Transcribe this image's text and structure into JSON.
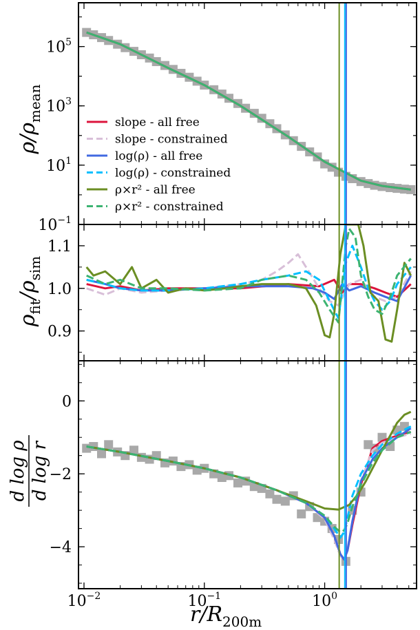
{
  "figure": {
    "xlabel_main": "r/R",
    "xlabel_sub": "200m",
    "x_ticks": [
      {
        "base": "10",
        "exp": "−2",
        "value": 0.01
      },
      {
        "base": "10",
        "exp": "−1",
        "value": 0.1
      },
      {
        "base": "10",
        "exp": "0",
        "value": 1
      }
    ]
  },
  "chart_data": [
    {
      "type": "line",
      "panel": "density",
      "ylabel_main": "ρ/ρ",
      "ylabel_sub": "mean",
      "xscale": "log",
      "yscale": "log",
      "xlim": [
        0.009,
        5.8
      ],
      "ylim": [
        0.1,
        3000000
      ],
      "y_ticks": [
        {
          "base": "10",
          "exp": "5",
          "value": 100000
        },
        {
          "base": "10",
          "exp": "3",
          "value": 1000
        },
        {
          "base": "10",
          "exp": "1",
          "value": 10
        },
        {
          "base": "10",
          "exp": "−1",
          "value": 0.1
        }
      ],
      "vlines": [
        {
          "x": 1.32,
          "color": "#6b8e23"
        },
        {
          "x": 1.47,
          "color": "#00bfff"
        },
        {
          "x": 1.51,
          "color": "#4169e1"
        }
      ],
      "legend": {
        "placement": "lower-left",
        "entries": [
          {
            "label": "slope - all free",
            "color": "#dc143c",
            "dash": "solid"
          },
          {
            "label": "slope - constrained",
            "color": "#d8bfd8",
            "dash": "dashed"
          },
          {
            "label": "log(ρ) - all free",
            "color": "#4169e1",
            "dash": "solid"
          },
          {
            "label": "log(ρ) - constrained",
            "color": "#00bfff",
            "dash": "dashed"
          },
          {
            "label": "ρ×r² - all free",
            "color": "#6b8e23",
            "dash": "solid"
          },
          {
            "label": "ρ×r² - constrained",
            "color": "#3cb371",
            "dash": "dashed"
          }
        ]
      },
      "sim_points": {
        "x": [
          0.0105,
          0.012,
          0.014,
          0.016,
          0.019,
          0.022,
          0.026,
          0.03,
          0.035,
          0.04,
          0.047,
          0.055,
          0.064,
          0.075,
          0.087,
          0.1,
          0.12,
          0.14,
          0.16,
          0.19,
          0.22,
          0.26,
          0.3,
          0.35,
          0.4,
          0.47,
          0.55,
          0.64,
          0.75,
          0.87,
          1.0,
          1.15,
          1.3,
          1.5,
          1.7,
          2.0,
          2.3,
          2.6,
          3.0,
          3.5,
          4.0,
          4.6,
          5.2
        ],
        "y": [
          300000,
          250000,
          200000,
          160000,
          120000,
          92000,
          69000,
          53000,
          41000,
          31000,
          23000,
          17000,
          12500,
          9200,
          6800,
          5000,
          3500,
          2500,
          1800,
          1200,
          830,
          560,
          380,
          250,
          170,
          105,
          67,
          43,
          28,
          19,
          11,
          8.5,
          5.8,
          4.2,
          3.5,
          2.8,
          2.4,
          2.1,
          1.9,
          1.75,
          1.65,
          1.55,
          1.5
        ]
      },
      "series": [
        {
          "name": "slope - all free",
          "color": "#dc143c",
          "x": [
            0.0105,
            0.02,
            0.05,
            0.1,
            0.2,
            0.5,
            1.0,
            1.5,
            2.0,
            3.0,
            5.2
          ],
          "y": [
            300000,
            120000,
            19000,
            5000,
            1000,
            90,
            13,
            5.5,
            3.0,
            2.0,
            1.5
          ]
        },
        {
          "name": "ρ×r² - constrained",
          "color": "#3cb371",
          "x": [
            0.0105,
            0.02,
            0.05,
            0.1,
            0.2,
            0.5,
            1.0,
            1.5,
            2.0,
            3.0,
            5.2
          ],
          "y": [
            300000,
            120000,
            19000,
            5000,
            1000,
            90,
            13,
            5.5,
            3.0,
            2.0,
            1.5
          ]
        }
      ]
    },
    {
      "type": "line",
      "panel": "ratio",
      "ylabel_main": "ρ",
      "ylabel_sub1": "fit",
      "ylabel_mid": "/ρ",
      "ylabel_sub2": "sim",
      "xscale": "log",
      "xlim": [
        0.009,
        5.8
      ],
      "ylim": [
        0.83,
        1.15
      ],
      "y_ticks": [
        {
          "label": "1.1",
          "value": 1.1
        },
        {
          "label": "1.0",
          "value": 1.0
        },
        {
          "label": "0.9",
          "value": 0.9
        }
      ],
      "series": [
        {
          "name": "slope - all free",
          "color": "#dc143c",
          "dash": "solid",
          "x": [
            0.0105,
            0.015,
            0.02,
            0.03,
            0.05,
            0.1,
            0.2,
            0.5,
            0.9,
            1.2,
            1.4,
            1.6,
            2.0,
            2.6,
            3.2,
            4.0,
            5.2
          ],
          "y": [
            1.01,
            1.0,
            1.005,
            0.995,
            1.0,
            1.0,
            1.0,
            1.01,
            1.005,
            1.02,
            0.99,
            1.01,
            1.01,
            1.0,
            0.99,
            0.98,
            1.01
          ]
        },
        {
          "name": "slope - constrained",
          "color": "#d8bfd8",
          "dash": "dashed",
          "x": [
            0.0105,
            0.015,
            0.02,
            0.03,
            0.05,
            0.1,
            0.2,
            0.3,
            0.4,
            0.5,
            0.6,
            0.7,
            0.9,
            1.1,
            1.3,
            1.6,
            2.0,
            2.6,
            3.2,
            4.0,
            5.2
          ],
          "y": [
            1.0,
            0.985,
            1.0,
            0.99,
            0.995,
            1.0,
            1.01,
            1.02,
            1.04,
            1.06,
            1.08,
            1.05,
            1.0,
            0.97,
            0.96,
            1.01,
            1.02,
            0.98,
            0.97,
            0.98,
            1.04
          ]
        },
        {
          "name": "log(ρ) - all free",
          "color": "#4169e1",
          "dash": "solid",
          "x": [
            0.0105,
            0.015,
            0.02,
            0.03,
            0.05,
            0.1,
            0.2,
            0.5,
            0.8,
            1.0,
            1.2,
            1.4,
            1.6,
            2.0,
            2.6,
            3.2,
            4.0,
            5.2
          ],
          "y": [
            1.02,
            1.01,
            1.0,
            0.995,
            0.995,
            1.0,
            1.005,
            1.005,
            1.0,
            0.99,
            0.975,
            1.01,
            0.995,
            1.005,
            0.99,
            0.98,
            0.97,
            1.03
          ]
        },
        {
          "name": "log(ρ) - constrained",
          "color": "#00bfff",
          "dash": "dashed",
          "x": [
            0.0105,
            0.015,
            0.02,
            0.03,
            0.05,
            0.1,
            0.2,
            0.3,
            0.5,
            0.7,
            0.9,
            1.1,
            1.3,
            1.5,
            1.7,
            2.0,
            2.3,
            2.6,
            3.0,
            3.5,
            4.0,
            5.2
          ],
          "y": [
            1.02,
            1.01,
            1.0,
            0.995,
            0.995,
            1.0,
            1.01,
            1.02,
            1.03,
            1.04,
            1.02,
            0.97,
            0.93,
            1.06,
            1.1,
            1.05,
            1.0,
            0.97,
            0.95,
            0.97,
            1.01,
            1.05
          ]
        },
        {
          "name": "ρ×r² - all free",
          "color": "#6b8e23",
          "dash": "solid",
          "x": [
            0.0105,
            0.012,
            0.015,
            0.02,
            0.025,
            0.03,
            0.04,
            0.05,
            0.07,
            0.1,
            0.15,
            0.2,
            0.3,
            0.5,
            0.7,
            0.85,
            1.0,
            1.1,
            1.2,
            1.35,
            1.5,
            1.7,
            1.9,
            2.1,
            2.4,
            2.8,
            3.2,
            3.6,
            4.0,
            4.6,
            5.2
          ],
          "y": [
            1.05,
            1.03,
            1.04,
            1.01,
            1.05,
            1.0,
            1.02,
            0.99,
            1.0,
            0.995,
            1.0,
            1.005,
            1.01,
            1.01,
            1.0,
            0.96,
            0.89,
            0.885,
            0.94,
            1.08,
            1.15,
            1.15,
            1.15,
            1.1,
            0.99,
            0.97,
            0.88,
            0.875,
            0.95,
            1.06,
            1.03
          ]
        },
        {
          "name": "ρ×r² - constrained",
          "color": "#3cb371",
          "dash": "dashed",
          "x": [
            0.0105,
            0.015,
            0.02,
            0.03,
            0.05,
            0.1,
            0.2,
            0.3,
            0.5,
            0.7,
            0.9,
            1.1,
            1.3,
            1.5,
            1.6,
            1.8,
            2.0,
            2.3,
            2.6,
            3.0,
            3.5,
            4.0,
            5.2
          ],
          "y": [
            1.03,
            1.01,
            1.02,
            1.0,
            1.0,
            0.995,
            1.0,
            1.02,
            1.03,
            1.02,
            0.99,
            0.95,
            0.92,
            1.1,
            1.14,
            1.12,
            1.03,
            0.98,
            0.95,
            0.94,
            0.98,
            1.03,
            1.07
          ]
        }
      ]
    },
    {
      "type": "line",
      "panel": "slope",
      "ylabel_num": "d log ρ",
      "ylabel_den": "d log r",
      "xscale": "log",
      "xlim": [
        0.009,
        5.8
      ],
      "ylim": [
        -5.15,
        1.1
      ],
      "y_ticks": [
        {
          "label": "0",
          "value": 0
        },
        {
          "label": "−2",
          "value": -2
        },
        {
          "label": "−4",
          "value": -4
        }
      ],
      "sim_points": {
        "x": [
          0.0105,
          0.012,
          0.014,
          0.016,
          0.019,
          0.022,
          0.026,
          0.03,
          0.035,
          0.04,
          0.047,
          0.055,
          0.064,
          0.075,
          0.087,
          0.1,
          0.12,
          0.14,
          0.16,
          0.19,
          0.22,
          0.26,
          0.3,
          0.35,
          0.4,
          0.47,
          0.55,
          0.64,
          0.75,
          0.87,
          1.0,
          1.15,
          1.3,
          1.5,
          1.7,
          2.0,
          2.3,
          2.6,
          3.0,
          3.5,
          4.0,
          4.6
        ],
        "y": [
          -1.3,
          -1.25,
          -1.45,
          -1.2,
          -1.4,
          -1.5,
          -1.35,
          -1.55,
          -1.6,
          -1.5,
          -1.7,
          -1.65,
          -1.8,
          -1.75,
          -1.9,
          -1.85,
          -2.0,
          -2.1,
          -2.05,
          -2.25,
          -2.2,
          -2.35,
          -2.4,
          -2.55,
          -2.7,
          -2.75,
          -2.6,
          -3.1,
          -2.9,
          -3.2,
          -3.3,
          -3.5,
          -3.8,
          -4.4,
          -3.0,
          -2.5,
          -1.2,
          -1.3,
          -1.0,
          -1.25,
          -0.8,
          -0.7
        ]
      },
      "series": [
        {
          "name": "slope - all free",
          "color": "#dc143c",
          "dash": "solid",
          "x": [
            0.0105,
            0.02,
            0.05,
            0.1,
            0.2,
            0.4,
            0.7,
            1.0,
            1.2,
            1.35,
            1.45,
            1.55,
            1.7,
            2.0,
            2.5,
            3.0,
            4.0,
            5.2
          ],
          "y": [
            -1.25,
            -1.4,
            -1.65,
            -1.85,
            -2.1,
            -2.45,
            -2.8,
            -3.2,
            -3.7,
            -4.2,
            -4.35,
            -4.1,
            -3.4,
            -2.3,
            -1.3,
            -1.1,
            -0.95,
            -0.85
          ]
        },
        {
          "name": "slope - constrained",
          "color": "#d8bfd8",
          "dash": "dashed",
          "x": [
            0.0105,
            0.02,
            0.05,
            0.1,
            0.2,
            0.4,
            0.7,
            1.0,
            1.2,
            1.35,
            1.45,
            1.55,
            1.7,
            2.0,
            2.5,
            3.0,
            4.0,
            5.2
          ],
          "y": [
            -1.25,
            -1.4,
            -1.65,
            -1.85,
            -2.1,
            -2.45,
            -2.8,
            -3.25,
            -3.8,
            -4.25,
            -4.35,
            -4.05,
            -3.3,
            -2.2,
            -1.35,
            -1.15,
            -1.0,
            -0.9
          ]
        },
        {
          "name": "log(ρ) - all free",
          "color": "#4169e1",
          "dash": "solid",
          "x": [
            0.0105,
            0.02,
            0.05,
            0.1,
            0.2,
            0.4,
            0.7,
            1.0,
            1.2,
            1.35,
            1.45,
            1.55,
            1.7,
            2.0,
            2.5,
            3.0,
            4.0,
            5.2
          ],
          "y": [
            -1.25,
            -1.4,
            -1.65,
            -1.85,
            -2.1,
            -2.45,
            -2.8,
            -3.2,
            -3.7,
            -4.2,
            -4.35,
            -4.1,
            -3.3,
            -2.2,
            -1.6,
            -1.3,
            -1.0,
            -0.75
          ]
        },
        {
          "name": "log(ρ) - constrained",
          "color": "#00bfff",
          "dash": "dashed",
          "x": [
            0.0105,
            0.02,
            0.05,
            0.1,
            0.2,
            0.4,
            0.7,
            1.0,
            1.2,
            1.35,
            1.45,
            1.55,
            1.7,
            2.0,
            2.5,
            3.0,
            4.0,
            5.2
          ],
          "y": [
            -1.25,
            -1.4,
            -1.65,
            -1.85,
            -2.1,
            -2.45,
            -2.8,
            -3.15,
            -3.5,
            -3.75,
            -3.6,
            -3.2,
            -2.6,
            -2.0,
            -1.5,
            -1.2,
            -0.9,
            -0.7
          ]
        },
        {
          "name": "ρ×r² - all free",
          "color": "#6b8e23",
          "dash": "solid",
          "x": [
            0.0105,
            0.02,
            0.05,
            0.1,
            0.2,
            0.4,
            0.7,
            1.0,
            1.3,
            1.6,
            1.9,
            2.2,
            2.5,
            3.0,
            3.5,
            4.0,
            4.6,
            5.2
          ],
          "y": [
            -1.25,
            -1.4,
            -1.65,
            -1.85,
            -2.1,
            -2.45,
            -2.75,
            -2.95,
            -2.98,
            -2.85,
            -2.55,
            -2.2,
            -1.85,
            -1.35,
            -0.95,
            -0.6,
            -0.38,
            -0.3
          ]
        },
        {
          "name": "ρ×r² - constrained",
          "color": "#3cb371",
          "dash": "dashed",
          "x": [
            0.0105,
            0.02,
            0.05,
            0.1,
            0.2,
            0.4,
            0.7,
            1.0,
            1.2,
            1.35,
            1.45,
            1.55,
            1.7,
            2.0,
            2.5,
            3.0,
            4.0,
            5.2
          ],
          "y": [
            -1.25,
            -1.4,
            -1.65,
            -1.85,
            -2.1,
            -2.45,
            -2.8,
            -3.15,
            -3.45,
            -3.6,
            -3.55,
            -3.35,
            -2.9,
            -2.3,
            -1.7,
            -1.35,
            -1.0,
            -0.85
          ]
        }
      ]
    }
  ]
}
